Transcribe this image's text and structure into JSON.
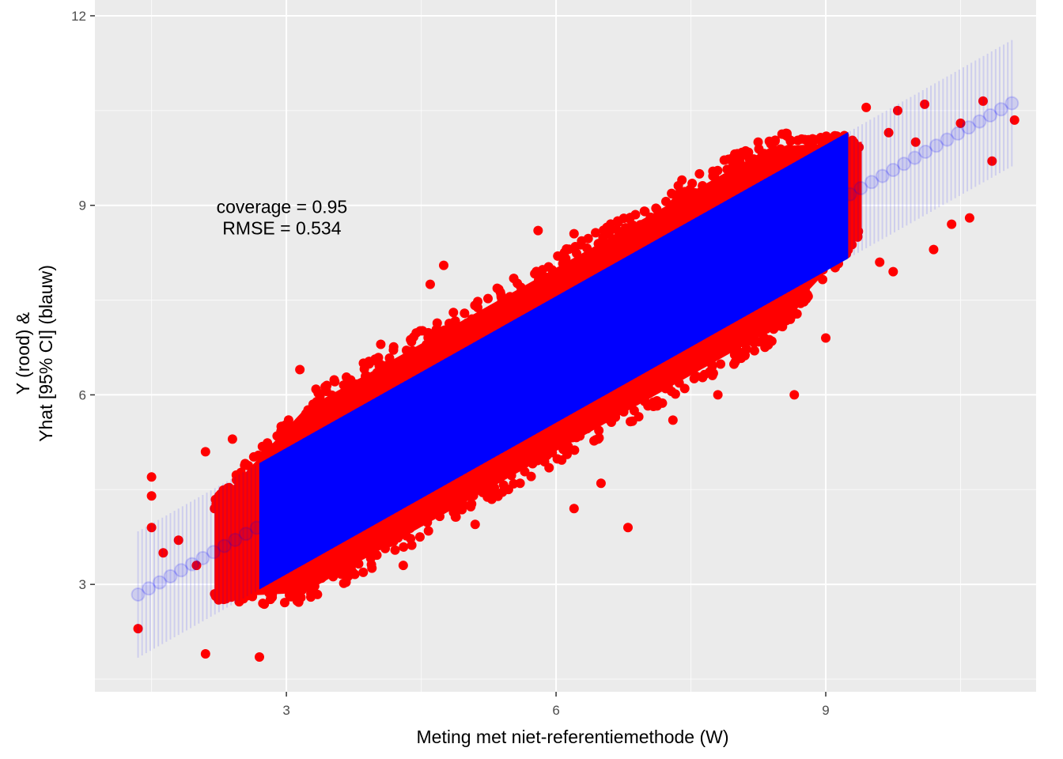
{
  "chart_data": {
    "type": "scatter",
    "title": "",
    "xlabel": "Meting met niet-referentiemethode (W)",
    "ylabel_lines": [
      "Y (rood) &",
      "Yhat [95% CI] (blauw)"
    ],
    "xlim": [
      0.87,
      11.34
    ],
    "ylim": [
      1.3,
      12.25
    ],
    "x_ticks": [
      3,
      6,
      9
    ],
    "y_ticks": [
      3,
      6,
      9,
      12
    ],
    "grid": true,
    "annotations": [
      "coverage = 0.95",
      "RMSE = 0.534"
    ],
    "annotation_position": {
      "x": 2.95,
      "y": 8.8
    },
    "colors": {
      "observed": "#ff0000",
      "predicted": "#0000ff",
      "panel": "#ebebeb"
    },
    "series": [
      {
        "name": "Y (rood)",
        "kind": "points",
        "dense_band": {
          "x_range": [
            2.2,
            9.4
          ],
          "half_width": 1.45
        },
        "points": [
          [
            1.35,
            2.3
          ],
          [
            1.5,
            4.7
          ],
          [
            1.5,
            4.4
          ],
          [
            1.5,
            3.9
          ],
          [
            1.63,
            3.5
          ],
          [
            2.1,
            1.9
          ],
          [
            2.7,
            1.85
          ],
          [
            2.1,
            5.1
          ],
          [
            2.4,
            5.3
          ],
          [
            2.25,
            4.4
          ],
          [
            3.15,
            6.4
          ],
          [
            4.75,
            8.05
          ],
          [
            4.6,
            7.75
          ],
          [
            5.8,
            8.6
          ],
          [
            6.2,
            8.55
          ],
          [
            8.65,
            6.0
          ],
          [
            9.0,
            6.9
          ],
          [
            9.8,
            10.5
          ],
          [
            10.1,
            10.6
          ],
          [
            10.75,
            10.65
          ],
          [
            11.1,
            10.35
          ],
          [
            10.85,
            9.7
          ],
          [
            10.2,
            8.3
          ],
          [
            10.4,
            8.7
          ],
          [
            9.75,
            7.95
          ],
          [
            3.2,
            3.1
          ],
          [
            2.55,
            2.9
          ],
          [
            4.3,
            3.3
          ],
          [
            6.2,
            4.2
          ],
          [
            6.5,
            4.6
          ],
          [
            7.3,
            5.6
          ],
          [
            7.8,
            6.0
          ],
          [
            8.4,
            6.85
          ],
          [
            8.0,
            6.7
          ],
          [
            4.05,
            6.8
          ],
          [
            3.45,
            6.15
          ],
          [
            3.7,
            3.25
          ],
          [
            5.1,
            3.95
          ],
          [
            5.6,
            4.6
          ],
          [
            8.3,
            9.7
          ],
          [
            7.4,
            9.4
          ],
          [
            9.1,
            10.1
          ],
          [
            9.45,
            10.55
          ],
          [
            9.7,
            10.15
          ],
          [
            10.0,
            10.0
          ],
          [
            10.5,
            10.3
          ],
          [
            1.8,
            3.7
          ],
          [
            2.0,
            3.3
          ],
          [
            2.3,
            3.1
          ],
          [
            10.6,
            8.8
          ],
          [
            9.6,
            8.1
          ],
          [
            6.8,
            3.9
          ]
        ]
      },
      {
        "name": "Yhat [95% CI] (blauw)",
        "kind": "fit_with_interval",
        "intercept": 1.76,
        "slope": 0.8,
        "ci_half_width": 1.0,
        "x_range": [
          1.35,
          11.1
        ],
        "dense_x_range": [
          2.7,
          9.25
        ]
      }
    ]
  }
}
